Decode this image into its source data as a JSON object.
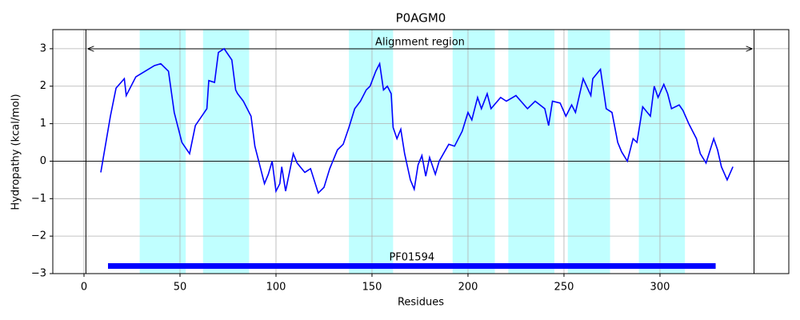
{
  "chart_data": {
    "type": "line",
    "title": "P0AGM0",
    "x_label": "Residues",
    "y_label": "Hydropathy (kcal/mol)",
    "color": "#0000ff",
    "x": [
      8.75,
      13.75,
      16.7,
      21,
      22,
      27,
      36.7,
      40,
      44,
      47,
      51,
      55,
      58,
      64,
      65,
      68,
      70,
      73,
      77,
      79,
      80,
      83,
      87,
      89,
      90,
      94,
      96,
      98,
      100,
      102,
      103,
      105,
      109,
      111,
      115,
      118,
      122,
      125,
      128,
      132,
      135,
      138,
      141,
      144,
      147,
      149,
      152,
      154,
      156,
      158,
      160,
      161,
      163,
      165,
      167,
      170,
      172,
      174,
      176,
      178,
      180,
      183,
      185,
      190,
      193,
      197,
      200,
      202,
      205,
      207,
      210,
      212,
      217,
      220,
      225,
      231,
      235,
      240,
      242,
      244,
      248,
      251,
      254,
      256,
      260,
      264,
      265,
      269,
      272,
      275,
      278,
      280,
      283,
      286,
      288,
      291,
      295,
      297,
      299,
      302,
      304,
      306,
      310,
      312,
      315,
      319,
      321,
      324,
      328,
      330,
      332,
      335,
      338
    ],
    "values": [
      -0.3,
      1.2,
      1.95,
      2.2,
      1.75,
      2.25,
      2.55,
      2.6,
      2.4,
      1.3,
      0.5,
      0.2,
      0.95,
      1.4,
      2.15,
      2.1,
      2.9,
      3.0,
      2.7,
      1.9,
      1.8,
      1.6,
      1.2,
      0.4,
      0.2,
      -0.6,
      -0.35,
      0.0,
      -0.8,
      -0.6,
      -0.15,
      -0.8,
      0.2,
      -0.05,
      -0.3,
      -0.2,
      -0.85,
      -0.7,
      -0.2,
      0.3,
      0.45,
      0.9,
      1.4,
      1.6,
      1.9,
      2.0,
      2.4,
      2.6,
      1.9,
      2.0,
      1.8,
      0.9,
      0.6,
      0.85,
      0.2,
      -0.5,
      -0.75,
      -0.1,
      0.15,
      -0.4,
      0.1,
      -0.35,
      0.0,
      0.45,
      0.4,
      0.8,
      1.3,
      1.1,
      1.7,
      1.4,
      1.8,
      1.4,
      1.7,
      1.6,
      1.75,
      1.4,
      1.6,
      1.4,
      0.95,
      1.6,
      1.55,
      1.2,
      1.5,
      1.3,
      2.2,
      1.75,
      2.2,
      2.45,
      1.4,
      1.3,
      0.5,
      0.25,
      0.0,
      0.6,
      0.5,
      1.45,
      1.2,
      2.0,
      1.7,
      2.05,
      1.8,
      1.4,
      1.5,
      1.35,
      1.0,
      0.6,
      0.2,
      -0.05,
      0.6,
      0.3,
      -0.15,
      -0.5,
      -0.15
    ],
    "xlim": [
      -16.25,
      367.1
    ],
    "ylim": [
      -3,
      3.51
    ],
    "xticks": [
      0,
      50,
      100,
      150,
      200,
      250,
      300
    ],
    "yticks": [
      {
        "value": -3,
        "label": "−3"
      },
      {
        "value": -2,
        "label": "−2"
      },
      {
        "value": -1,
        "label": "−1"
      },
      0,
      1,
      2,
      3
    ],
    "grid": true,
    "regions": [
      [
        29,
        53
      ],
      [
        62,
        86
      ],
      [
        138,
        161
      ],
      [
        192,
        214
      ],
      [
        221,
        245
      ],
      [
        252,
        274
      ],
      [
        289,
        313
      ]
    ],
    "region_color": "#c0ffff",
    "alignment": {
      "label": "Alignment region",
      "start": 1,
      "end": 349
    },
    "domains": [
      {
        "name": "PF01594",
        "start": 12.5,
        "end": 329,
        "color": "#0000ff"
      }
    ]
  }
}
